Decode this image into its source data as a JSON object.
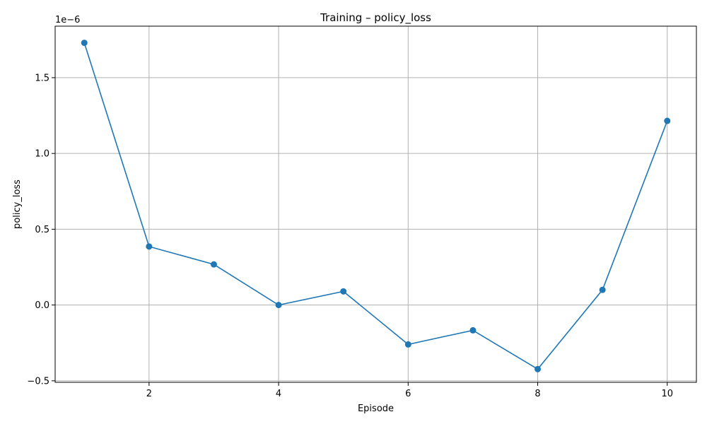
{
  "chart_data": {
    "type": "line",
    "title": "Training – policy_loss",
    "xlabel": "Episode",
    "ylabel": "policy_loss",
    "y_multiplier_label": "1e−6",
    "x": [
      1,
      2,
      3,
      4,
      5,
      6,
      7,
      8,
      9,
      10
    ],
    "series": [
      {
        "values": [
          1.73e-06,
          3.86e-07,
          2.68e-07,
          0.0,
          9e-08,
          -2.6e-07,
          -1.67e-07,
          -4.23e-07,
          1e-07,
          1.215e-06
        ],
        "color": "#1f77b4",
        "marker": "circle"
      }
    ],
    "xlim": [
      0.55,
      10.45
    ],
    "ylim": [
      -5.1e-07,
      1.84e-06
    ],
    "x_ticks": [
      2,
      4,
      6,
      8,
      10
    ],
    "x_tick_labels": [
      "2",
      "4",
      "6",
      "8",
      "10"
    ],
    "y_ticks": [
      -5e-07,
      0.0,
      5e-07,
      1e-06,
      1.5e-06
    ],
    "y_tick_labels": [
      "−0.5",
      "0.0",
      "0.5",
      "1.0",
      "1.5"
    ],
    "grid": true
  }
}
